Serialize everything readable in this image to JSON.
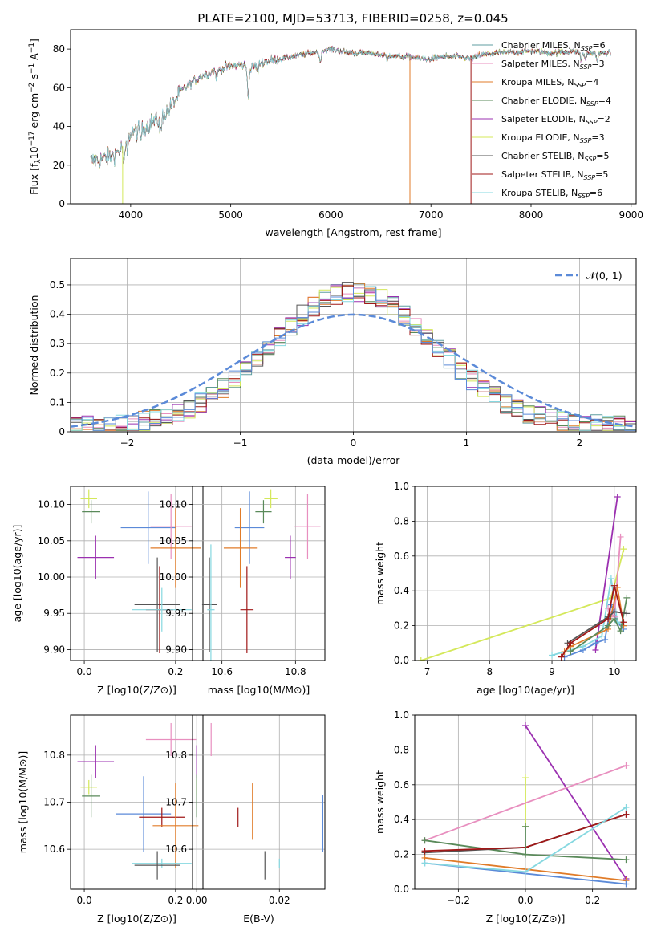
{
  "title": "PLATE=2100, MJD=53713, FIBERID=0258, z=0.045",
  "colors": {
    "chabrier_miles": "#5f9ea0",
    "salpeter_miles": "#e88fbf",
    "kroupa_miles": "#e07b28",
    "chabrier_elodie": "#5a8a5a",
    "salpeter_elodie": "#9b30b0",
    "kroupa_elodie": "#d4e85a",
    "chabrier_stelib": "#555555",
    "salpeter_stelib": "#a01818",
    "kroupa_stelib": "#86d8e0",
    "normal_curve": "#5b8ad8",
    "extra_blue": "#5b8ad8"
  },
  "legend": [
    {
      "key": "chabrier_miles",
      "label": "Chabrier MILES, N",
      "nssp": "=6"
    },
    {
      "key": "salpeter_miles",
      "label": "Salpeter MILES, N",
      "nssp": "=3"
    },
    {
      "key": "kroupa_miles",
      "label": "Kroupa MILES, N",
      "nssp": "=4"
    },
    {
      "key": "chabrier_elodie",
      "label": "Chabrier ELODIE, N",
      "nssp": "=4"
    },
    {
      "key": "salpeter_elodie",
      "label": "Salpeter ELODIE, N",
      "nssp": "=2"
    },
    {
      "key": "kroupa_elodie",
      "label": "Kroupa ELODIE, N",
      "nssp": "=3"
    },
    {
      "key": "chabrier_stelib",
      "label": "Chabrier STELIB, N",
      "nssp": "=5"
    },
    {
      "key": "salpeter_stelib",
      "label": "Salpeter STELIB, N",
      "nssp": "=5"
    },
    {
      "key": "kroupa_stelib",
      "label": "Kroupa STELIB, N",
      "nssp": "=6"
    }
  ],
  "legend_sub": "SSP",
  "normal_legend": "𝒩(0, 1)",
  "chart_data": [
    {
      "id": "spectrum",
      "type": "line",
      "xlabel": "wavelength [Angstrom, rest frame]",
      "ylabel": "Flux [f_λ10^-17 erg cm^-2 s^-1 A^-1]",
      "xlim": [
        3400,
        9050
      ],
      "ylim": [
        0,
        90
      ],
      "xticks": [
        4000,
        5000,
        6000,
        7000,
        8000,
        9000
      ],
      "yticks": [
        0,
        20,
        40,
        60,
        80
      ],
      "x_range": [
        3600,
        8800
      ],
      "continuum": [
        [
          3600,
          22
        ],
        [
          3800,
          24
        ],
        [
          3900,
          28
        ],
        [
          4000,
          37
        ],
        [
          4100,
          38
        ],
        [
          4200,
          42
        ],
        [
          4300,
          44
        ],
        [
          4400,
          50
        ],
        [
          4500,
          58
        ],
        [
          4600,
          62
        ],
        [
          4700,
          66
        ],
        [
          4800,
          68
        ],
        [
          4900,
          70
        ],
        [
          5000,
          71
        ],
        [
          5100,
          72
        ],
        [
          5200,
          70
        ],
        [
          5300,
          73
        ],
        [
          5400,
          74
        ],
        [
          5500,
          75
        ],
        [
          5600,
          76
        ],
        [
          5700,
          77
        ],
        [
          5800,
          78
        ],
        [
          5900,
          79
        ],
        [
          6000,
          80
        ],
        [
          6100,
          79
        ],
        [
          6200,
          78
        ],
        [
          6300,
          78
        ],
        [
          6400,
          78
        ],
        [
          6500,
          77
        ],
        [
          6600,
          77
        ],
        [
          6700,
          76
        ],
        [
          6800,
          76
        ],
        [
          6900,
          75
        ],
        [
          7000,
          75
        ],
        [
          7100,
          76
        ],
        [
          7200,
          76
        ],
        [
          7300,
          76
        ],
        [
          7400,
          75
        ],
        [
          7500,
          77
        ],
        [
          7700,
          78
        ],
        [
          8000,
          79
        ],
        [
          8200,
          78
        ],
        [
          8400,
          79
        ],
        [
          8600,
          78
        ],
        [
          8800,
          78
        ]
      ],
      "absorption": [
        [
          3934,
          -12
        ],
        [
          3969,
          -8
        ],
        [
          4101,
          -4
        ],
        [
          4300,
          -8
        ],
        [
          4861,
          -4
        ],
        [
          5175,
          -14
        ],
        [
          5270,
          -4
        ],
        [
          5893,
          -6
        ],
        [
          6563,
          -3
        ],
        [
          8500,
          -4
        ],
        [
          8542,
          -4
        ],
        [
          8662,
          -4
        ]
      ],
      "drops": [
        3920,
        6790,
        7400
      ],
      "series_keys": [
        "chabrier_miles",
        "salpeter_miles",
        "kroupa_miles",
        "chabrier_elodie",
        "salpeter_elodie",
        "kroupa_elodie",
        "chabrier_stelib",
        "salpeter_stelib",
        "kroupa_stelib"
      ]
    },
    {
      "id": "residuals",
      "type": "histogram",
      "xlabel": "(data-model)/error",
      "ylabel": "Normed distribution",
      "xlim": [
        -2.5,
        2.5
      ],
      "ylim": [
        0,
        0.59
      ],
      "xticks": [
        -2,
        -1,
        0,
        1,
        2
      ],
      "yticks": [
        0.0,
        0.1,
        0.2,
        0.3,
        0.4,
        0.5
      ],
      "bin_width": 0.1,
      "bin_start": -2.5,
      "series_keys": [
        "chabrier_miles",
        "salpeter_miles",
        "kroupa_miles",
        "chabrier_elodie",
        "salpeter_elodie",
        "kroupa_elodie",
        "chabrier_stelib",
        "salpeter_stelib",
        "kroupa_stelib",
        "extra_blue"
      ]
    },
    {
      "id": "age_Z",
      "type": "errorbar",
      "xlabel": "Z [log10(Z/Z⊙)]",
      "ylabel": "age  [log10(age/yr)]",
      "xlim": [
        -0.03,
        0.26
      ],
      "ylim": [
        9.885,
        10.125
      ],
      "xticks": [
        0.0,
        0.2
      ],
      "xticklabels": [
        "0.0",
        "0.2"
      ],
      "yticks": [
        9.9,
        9.95,
        10.0,
        10.05,
        10.1
      ],
      "yticklabels": [
        "9.90",
        "9.95",
        "10.00",
        "10.05",
        "10.10"
      ],
      "points": [
        {
          "key": "kroupa_elodie",
          "x": 0.01,
          "y": 10.108,
          "xerr": 0.018,
          "yerr": 0.013
        },
        {
          "key": "chabrier_elodie",
          "x": 0.015,
          "y": 10.09,
          "xerr": 0.02,
          "yerr": 0.016
        },
        {
          "key": "salpeter_elodie",
          "x": 0.025,
          "y": 10.027,
          "xerr": 0.04,
          "yerr": 0.03
        },
        {
          "key": "extra_blue",
          "x": 0.14,
          "y": 10.068,
          "xerr": 0.06,
          "yerr": 0.05
        },
        {
          "key": "salpeter_miles",
          "x": 0.19,
          "y": 10.07,
          "xerr": 0.045,
          "yerr": 0.045
        },
        {
          "key": "kroupa_miles",
          "x": 0.2,
          "y": 10.04,
          "xerr": 0.055,
          "yerr": 0.055
        },
        {
          "key": "chabrier_stelib",
          "x": 0.16,
          "y": 9.962,
          "xerr": 0.05,
          "yerr": 0.065
        },
        {
          "key": "salpeter_stelib",
          "x": 0.165,
          "y": 9.955,
          "xerr": 0.03,
          "yerr": 0.06
        },
        {
          "key": "kroupa_stelib",
          "x": 0.17,
          "y": 9.955,
          "xerr": 0.065,
          "yerr": 0.03
        }
      ]
    },
    {
      "id": "age_mass",
      "type": "errorbar",
      "xlabel": "mass [log10(M/M⊙)]",
      "ylabel": "",
      "xlim": [
        10.52,
        10.88
      ],
      "ylim": [
        9.885,
        10.125
      ],
      "xticks": [
        10.6,
        10.8
      ],
      "xticklabels": [
        "10.6",
        "10.8"
      ],
      "yticks": [
        9.9,
        9.95,
        10.0,
        10.05,
        10.1
      ],
      "yticklabels": [
        "9.90",
        "9.95",
        "10.00",
        "10.05",
        "10.10"
      ],
      "points": [
        {
          "key": "kroupa_elodie",
          "x": 10.733,
          "y": 10.108,
          "xerr": 0.018,
          "yerr": 0.013
        },
        {
          "key": "chabrier_elodie",
          "x": 10.713,
          "y": 10.09,
          "xerr": 0.022,
          "yerr": 0.016
        },
        {
          "key": "salpeter_elodie",
          "x": 10.786,
          "y": 10.027,
          "xerr": 0.015,
          "yerr": 0.03
        },
        {
          "key": "extra_blue",
          "x": 10.675,
          "y": 10.068,
          "xerr": 0.04,
          "yerr": 0.05
        },
        {
          "key": "salpeter_miles",
          "x": 10.833,
          "y": 10.07,
          "xerr": 0.035,
          "yerr": 0.045
        },
        {
          "key": "kroupa_miles",
          "x": 10.65,
          "y": 10.04,
          "xerr": 0.045,
          "yerr": 0.055
        },
        {
          "key": "chabrier_stelib",
          "x": 10.566,
          "y": 9.962,
          "xerr": 0.02,
          "yerr": 0.065
        },
        {
          "key": "salpeter_stelib",
          "x": 10.668,
          "y": 9.955,
          "xerr": 0.018,
          "yerr": 0.06
        },
        {
          "key": "kroupa_stelib",
          "x": 10.57,
          "y": 9.955,
          "xerr": 0.01,
          "yerr": 0.09
        }
      ]
    },
    {
      "id": "weight_age",
      "type": "line",
      "xlabel": "age  [log10(age/yr)]",
      "ylabel": "mass weight",
      "xlim": [
        6.8,
        10.35
      ],
      "ylim": [
        0,
        1.0
      ],
      "xticks": [
        7,
        8,
        9,
        10
      ],
      "xticklabels": [
        "7",
        "8",
        "9",
        "10"
      ],
      "yticks": [
        0,
        0.2,
        0.4,
        0.6,
        0.8,
        1.0
      ],
      "yticklabels": [
        "0.0",
        "0.2",
        "0.4",
        "0.6",
        "0.8",
        "1.0"
      ],
      "series": [
        {
          "key": "kroupa_elodie",
          "x": [
            6.9,
            9.95,
            10.15
          ],
          "y": [
            0.0,
            0.36,
            0.64
          ]
        },
        {
          "key": "salpeter_elodie",
          "x": [
            9.7,
            10.05
          ],
          "y": [
            0.06,
            0.94
          ]
        },
        {
          "key": "extra_blue",
          "x": [
            9.2,
            9.5,
            9.7,
            9.85,
            9.95,
            10.05,
            10.15
          ],
          "y": [
            0.02,
            0.06,
            0.1,
            0.12,
            0.32,
            0.22,
            0.18
          ]
        },
        {
          "key": "kroupa_stelib",
          "x": [
            9.0,
            9.5,
            9.8,
            9.95,
            10.05,
            10.15
          ],
          "y": [
            0.03,
            0.08,
            0.14,
            0.47,
            0.22,
            0.2
          ]
        },
        {
          "key": "salpeter_miles",
          "x": [
            9.9,
            10.0,
            10.1
          ],
          "y": [
            0.3,
            0.25,
            0.71
          ]
        },
        {
          "key": "kroupa_miles",
          "x": [
            9.2,
            9.3,
            9.9,
            10.05,
            10.15
          ],
          "y": [
            0.05,
            0.08,
            0.18,
            0.42,
            0.2
          ]
        },
        {
          "key": "chabrier_elodie",
          "x": [
            9.3,
            9.9,
            10.0,
            10.1,
            10.2
          ],
          "y": [
            0.05,
            0.2,
            0.24,
            0.17,
            0.36
          ]
        },
        {
          "key": "chabrier_stelib",
          "x": [
            9.25,
            9.9,
            10.0,
            10.2
          ],
          "y": [
            0.1,
            0.25,
            0.28,
            0.27
          ]
        },
        {
          "key": "salpeter_stelib",
          "x": [
            9.15,
            9.3,
            9.9,
            10.0,
            10.15
          ],
          "y": [
            0.02,
            0.1,
            0.24,
            0.43,
            0.22
          ]
        }
      ]
    },
    {
      "id": "mass_Z",
      "type": "errorbar",
      "xlabel": "Z [log10(Z/Z⊙)]",
      "ylabel": "mass [log10(M/M⊙)]",
      "xlim": [
        -0.03,
        0.26
      ],
      "ylim": [
        10.515,
        10.885
      ],
      "xticks": [
        0.0,
        0.2
      ],
      "xticklabels": [
        "0.0",
        "0.2"
      ],
      "yticks": [
        10.6,
        10.7,
        10.8
      ],
      "yticklabels": [
        "10.6",
        "10.7",
        "10.8"
      ],
      "points": [
        {
          "key": "salpeter_elodie",
          "x": 0.025,
          "y": 10.786,
          "xerr": 0.04,
          "yerr": 0.035
        },
        {
          "key": "kroupa_elodie",
          "x": 0.01,
          "y": 10.732,
          "xerr": 0.018,
          "yerr": 0.015
        },
        {
          "key": "chabrier_elodie",
          "x": 0.015,
          "y": 10.713,
          "xerr": 0.02,
          "yerr": 0.045
        },
        {
          "key": "salpeter_miles",
          "x": 0.19,
          "y": 10.833,
          "xerr": 0.055,
          "yerr": 0.035
        },
        {
          "key": "extra_blue",
          "x": 0.13,
          "y": 10.675,
          "xerr": 0.06,
          "yerr": 0.08
        },
        {
          "key": "salpeter_stelib",
          "x": 0.17,
          "y": 10.668,
          "xerr": 0.05,
          "yerr": 0.02
        },
        {
          "key": "kroupa_miles",
          "x": 0.2,
          "y": 10.65,
          "xerr": 0.05,
          "yerr": 0.09
        },
        {
          "key": "kroupa_stelib",
          "x": 0.17,
          "y": 10.57,
          "xerr": 0.065,
          "yerr": 0.01
        },
        {
          "key": "chabrier_stelib",
          "x": 0.16,
          "y": 10.566,
          "xerr": 0.05,
          "yerr": 0.03
        }
      ]
    },
    {
      "id": "mass_ebv",
      "type": "errorbar",
      "xlabel": "E(B-V)",
      "ylabel": "",
      "xlim": [
        -0.001,
        0.031
      ],
      "ylim": [
        10.515,
        10.885
      ],
      "xticks": [
        0.0,
        0.02
      ],
      "xticklabels": [
        "0.00",
        "0.02"
      ],
      "yticks": [
        10.6,
        10.7,
        10.8
      ],
      "yticklabels": [
        "10.6",
        "10.7",
        "10.8"
      ],
      "points": [
        {
          "key": "salpeter_elodie",
          "x": 0.0,
          "y": 10.786,
          "xerr": 0,
          "yerr": 0.035
        },
        {
          "key": "kroupa_elodie",
          "x": 0.0,
          "y": 10.732,
          "xerr": 0,
          "yerr": 0.015
        },
        {
          "key": "chabrier_elodie",
          "x": 0.0,
          "y": 10.713,
          "xerr": 0,
          "yerr": 0.045
        },
        {
          "key": "salpeter_miles",
          "x": 0.0035,
          "y": 10.833,
          "xerr": 0,
          "yerr": 0.035
        },
        {
          "key": "salpeter_stelib",
          "x": 0.01,
          "y": 10.668,
          "xerr": 0,
          "yerr": 0.02
        },
        {
          "key": "kroupa_miles",
          "x": 0.0135,
          "y": 10.68,
          "xerr": 0,
          "yerr": 0.06
        },
        {
          "key": "chabrier_stelib",
          "x": 0.0165,
          "y": 10.566,
          "xerr": 0,
          "yerr": 0.03
        },
        {
          "key": "extra_blue",
          "x": 0.0305,
          "y": 10.655,
          "xerr": 0,
          "yerr": 0.06
        },
        {
          "key": "kroupa_stelib",
          "x": 0.02,
          "y": 10.57,
          "xerr": 0,
          "yerr": 0.01
        }
      ]
    },
    {
      "id": "weight_Z",
      "type": "line",
      "xlabel": "Z [log10(Z/Z⊙)]",
      "ylabel": "mass weight",
      "xlim": [
        -0.33,
        0.33
      ],
      "ylim": [
        0,
        1.0
      ],
      "xticks": [
        -0.2,
        0.0,
        0.2
      ],
      "xticklabels": [
        "−0.2",
        "0.0",
        "0.2"
      ],
      "yticks": [
        0,
        0.2,
        0.4,
        0.6,
        0.8,
        1.0
      ],
      "yticklabels": [
        "0.0",
        "0.2",
        "0.4",
        "0.6",
        "0.8",
        "1.0"
      ],
      "series": [
        {
          "key": "salpeter_elodie",
          "x": [
            0.0,
            0.3
          ],
          "y": [
            0.94,
            0.06
          ]
        },
        {
          "key": "kroupa_elodie",
          "x": [
            0.0,
            0.0
          ],
          "y": [
            0.64,
            0.36
          ]
        },
        {
          "key": "salpeter_miles",
          "x": [
            -0.3,
            0.3
          ],
          "y": [
            0.28,
            0.71
          ]
        },
        {
          "key": "chabrier_elodie",
          "x": [
            -0.3,
            0.0,
            0.3
          ],
          "y": [
            0.28,
            0.2,
            0.17
          ]
        },
        {
          "key": "chabrier_stelib",
          "x": [
            -0.3,
            0.0,
            0.3
          ],
          "y": [
            0.21,
            0.24,
            0.43
          ]
        },
        {
          "key": "salpeter_stelib",
          "x": [
            -0.3,
            0.0,
            0.3
          ],
          "y": [
            0.22,
            0.24,
            0.43
          ]
        },
        {
          "key": "kroupa_miles",
          "x": [
            -0.3,
            0.3
          ],
          "y": [
            0.18,
            0.05
          ]
        },
        {
          "key": "extra_blue",
          "x": [
            -0.3,
            0.3
          ],
          "y": [
            0.15,
            0.03
          ]
        },
        {
          "key": "kroupa_stelib",
          "x": [
            -0.3,
            0.0,
            0.3
          ],
          "y": [
            0.15,
            0.1,
            0.47
          ]
        },
        {
          "key": "chabrier_elodie",
          "x": [
            0.0,
            0.0
          ],
          "y": [
            0.36,
            0.2
          ]
        }
      ]
    }
  ]
}
